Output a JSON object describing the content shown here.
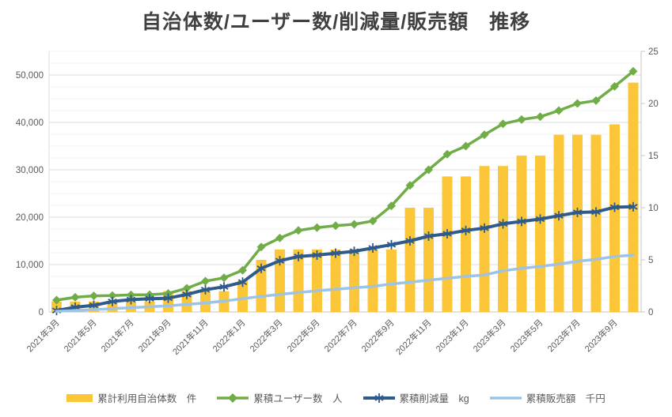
{
  "chart_data": {
    "type": "combo",
    "title": "自治体数/ユーザー数/削減量/販売額　推移",
    "grid": true,
    "legend_position": "bottom",
    "months": [
      "2021年3月",
      "2021年4月",
      "2021年5月",
      "2021年6月",
      "2021年7月",
      "2021年8月",
      "2021年9月",
      "2021年10月",
      "2021年11月",
      "2021年12月",
      "2022年1月",
      "2022年2月",
      "2022年3月",
      "2022年4月",
      "2022年5月",
      "2022年6月",
      "2022年7月",
      "2022年8月",
      "2022年9月",
      "2022年10月",
      "2022年11月",
      "2022年12月",
      "2023年1月",
      "2023年2月",
      "2023年3月",
      "2023年4月",
      "2023年5月",
      "2023年6月",
      "2023年7月",
      "2023年8月",
      "2023年9月",
      "2023年10月"
    ],
    "x_tick_labels": [
      "2021年3月",
      "2021年5月",
      "2021年7月",
      "2021年9月",
      "2021年11月",
      "2022年1月",
      "2022年3月",
      "2022年5月",
      "2022年7月",
      "2022年9月",
      "2022年11月",
      "2023年1月",
      "2023年3月",
      "2023年5月",
      "2023年7月",
      "2023年9月"
    ],
    "left_axis": {
      "min": 0,
      "max": 55000,
      "tick_step": 10000,
      "ticks": [
        "0",
        "10,000",
        "20,000",
        "30,000",
        "40,000",
        "50,000"
      ],
      "minor_step": 2500
    },
    "right_axis": {
      "min": 0,
      "max": 25,
      "tick_step": 5,
      "ticks": [
        "0",
        "5",
        "10",
        "15",
        "20",
        "25"
      ]
    },
    "series": [
      {
        "name": "累計利用自治体数　件",
        "type": "bar",
        "axis": "right",
        "color": "#FBC638",
        "values": [
          1,
          1,
          1,
          1,
          1,
          1,
          2,
          2,
          2,
          2,
          3,
          5,
          6,
          6,
          6,
          6,
          6,
          6,
          6,
          10,
          10,
          13,
          13,
          14,
          14,
          15,
          15,
          17,
          17,
          17,
          18,
          22
        ]
      },
      {
        "name": "累積ユーザー数　人",
        "type": "line",
        "marker": "diamond",
        "axis": "left",
        "color": "#70AD47",
        "values": [
          2500,
          3100,
          3400,
          3450,
          3600,
          3650,
          3900,
          5000,
          6500,
          7200,
          8800,
          13700,
          15600,
          17200,
          17800,
          18200,
          18500,
          19200,
          22400,
          26700,
          30000,
          33300,
          35000,
          37400,
          39700,
          40600,
          41200,
          42500,
          44000,
          44600,
          47600,
          50800
        ]
      },
      {
        "name": "累積削減量　kg",
        "type": "line",
        "marker": "asterisk",
        "axis": "left",
        "color": "#2E5B8C",
        "values": [
          300,
          1000,
          1400,
          2200,
          2600,
          2800,
          2900,
          3700,
          4700,
          5300,
          6300,
          9200,
          10800,
          11700,
          12000,
          12400,
          12800,
          13500,
          14200,
          15000,
          16000,
          16500,
          17200,
          17700,
          18600,
          19100,
          19600,
          20300,
          21000,
          21100,
          22100,
          22200
        ]
      },
      {
        "name": "累積販売額　千円",
        "type": "line",
        "marker": "none",
        "axis": "left",
        "color": "#9DC3E6",
        "values": [
          150,
          300,
          500,
          700,
          900,
          1100,
          1300,
          1600,
          1900,
          2300,
          2800,
          3300,
          3700,
          4100,
          4450,
          4800,
          5100,
          5400,
          5900,
          6300,
          6700,
          7100,
          7500,
          7800,
          8700,
          9200,
          9600,
          10100,
          10700,
          11100,
          11700,
          12000
        ]
      }
    ],
    "style": {
      "minor_grid_color": "#F3F3F3",
      "major_grid_color": "#DEDEDE",
      "axis_line_color": "#C6C6C6",
      "tick_label_color": "#595959",
      "title_color": "#404040"
    }
  }
}
